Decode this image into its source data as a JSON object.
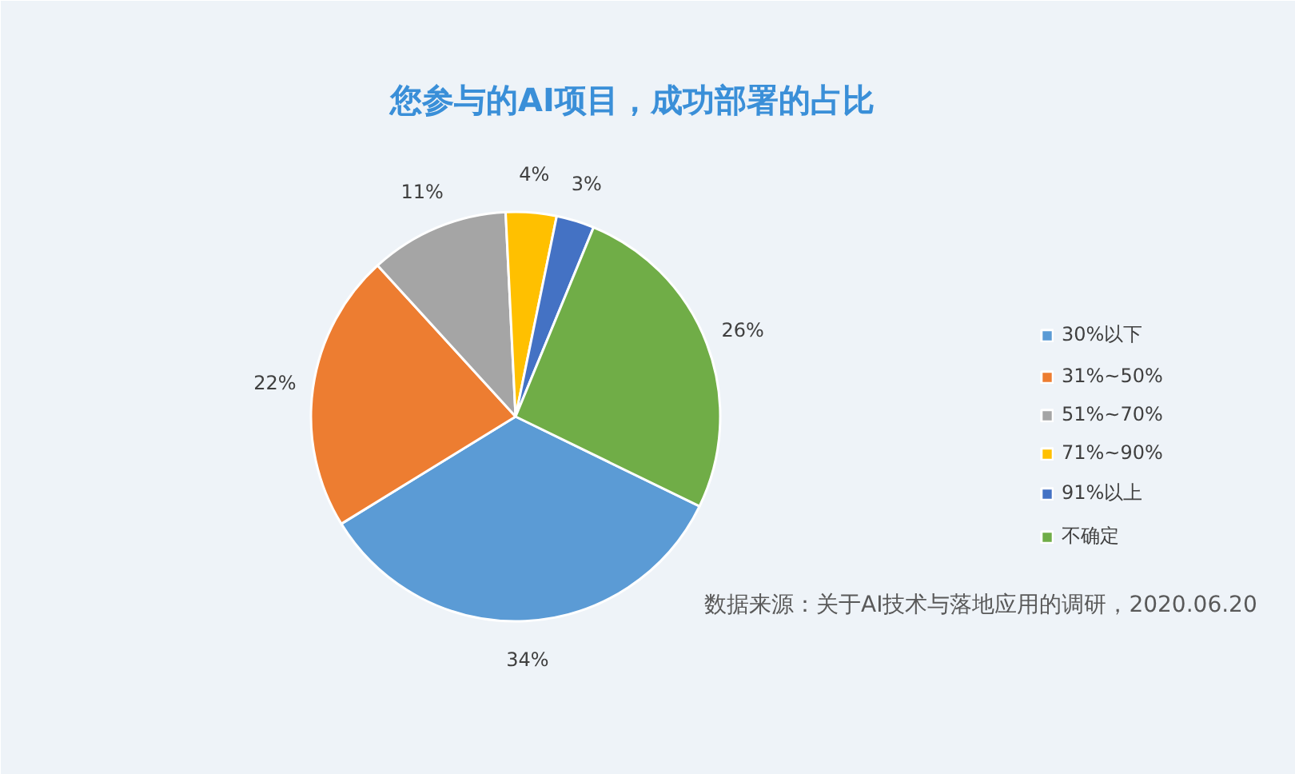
{
  "chart_data": {
    "type": "pie",
    "title": "您参与的AI项目，成功部署的占比",
    "categories": [
      "30%以下",
      "31%~50%",
      "51%~70%",
      "71%~90%",
      "91%以上",
      "不确定"
    ],
    "values": [
      34,
      22,
      11,
      4,
      3,
      26
    ],
    "colors": [
      "#5b9bd5",
      "#ed7d31",
      "#a5a5a5",
      "#ffc000",
      "#4472c4",
      "#70ad47"
    ],
    "value_labels": [
      "34%",
      "22%",
      "11%",
      "4%",
      "3%",
      "26%"
    ],
    "legend": "right",
    "annotations": [
      "数据来源：关于AI技术与落地应用的调研，2020.06.20"
    ]
  }
}
